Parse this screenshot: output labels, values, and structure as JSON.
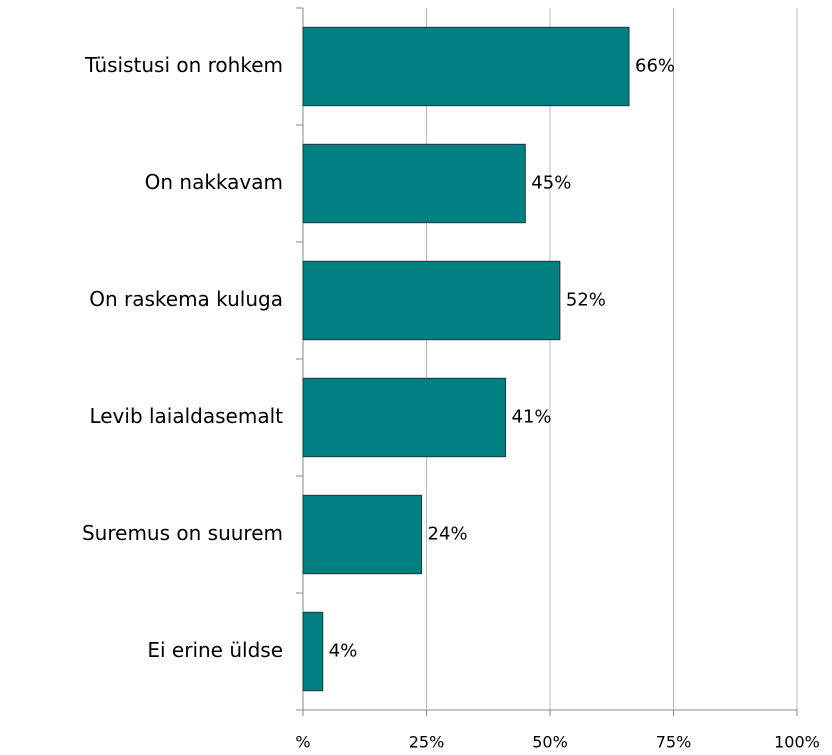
{
  "chart_data": {
    "type": "bar",
    "orientation": "horizontal",
    "categories": [
      "Tüsistusi on rohkem",
      "On nakkavam",
      "On raskema kuluga",
      "Levib laialdasemalt",
      "Suremus on suurem",
      "Ei erine üldse"
    ],
    "values": [
      66,
      45,
      52,
      41,
      24,
      4
    ],
    "value_labels": [
      "66%",
      "45%",
      "52%",
      "41%",
      "24%",
      "4%"
    ],
    "color": "#008080",
    "xlim": [
      0,
      100
    ],
    "xticks": [
      {
        "value": 0,
        "label": "%"
      },
      {
        "value": 25,
        "label": "25%"
      },
      {
        "value": 50,
        "label": "50%"
      },
      {
        "value": 75,
        "label": "75%"
      },
      {
        "value": 100,
        "label": "100%"
      }
    ],
    "grid": true
  }
}
